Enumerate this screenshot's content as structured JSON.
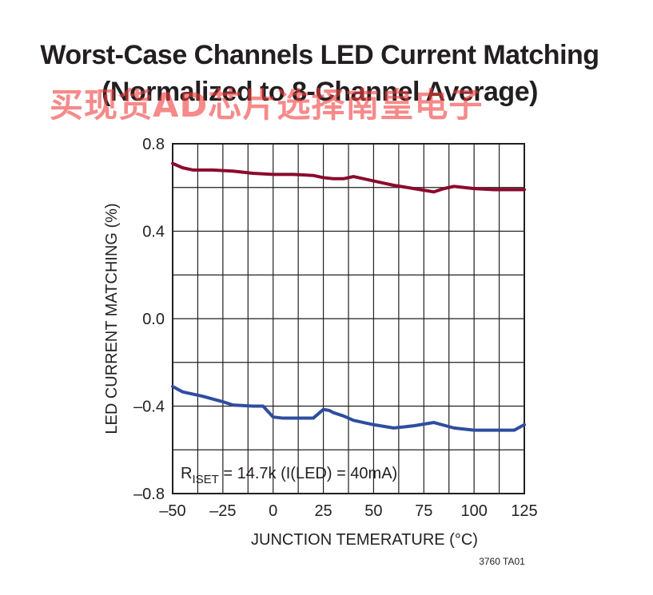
{
  "chart_data": {
    "type": "line",
    "title": "Worst-Case Channels LED Current Matching",
    "subtitle": "(Normalized to 8-Channel Average)",
    "xlabel": "JUNCTION TEMERATURE (°C)",
    "ylabel": "LED CURRENT MATCHING (%)",
    "xlim": [
      -50,
      125
    ],
    "ylim": [
      -0.8,
      0.8
    ],
    "xticks": [
      -50,
      -25,
      0,
      25,
      50,
      75,
      100,
      125
    ],
    "xtick_labels": [
      "–50",
      "–25",
      "0",
      "25",
      "50",
      "75",
      "100",
      "125"
    ],
    "yticks": [
      0.8,
      0.4,
      0.0,
      -0.4,
      -0.8
    ],
    "ytick_labels": [
      "0.8",
      "0.4",
      "0.0",
      "–0.4",
      "–0.8"
    ],
    "grid": true,
    "series": [
      {
        "color": "#8b0a2e",
        "x": [
          -50,
          -45,
          -40,
          -30,
          -20,
          -10,
          0,
          10,
          20,
          25,
          30,
          35,
          40,
          45,
          50,
          55,
          60,
          70,
          80,
          85,
          90,
          100,
          110,
          120,
          125
        ],
        "y": [
          0.71,
          0.69,
          0.68,
          0.68,
          0.675,
          0.665,
          0.66,
          0.66,
          0.655,
          0.645,
          0.64,
          0.64,
          0.65,
          0.64,
          0.63,
          0.62,
          0.61,
          0.595,
          0.58,
          0.595,
          0.605,
          0.595,
          0.59,
          0.59,
          0.59
        ]
      },
      {
        "color": "#2e4da0",
        "x": [
          -50,
          -45,
          -35,
          -25,
          -20,
          -10,
          -5,
          -3,
          0,
          5,
          10,
          20,
          25,
          28,
          30,
          35,
          40,
          50,
          60,
          70,
          80,
          90,
          100,
          110,
          120,
          125
        ],
        "y": [
          -0.31,
          -0.335,
          -0.355,
          -0.38,
          -0.395,
          -0.4,
          -0.4,
          -0.42,
          -0.45,
          -0.455,
          -0.455,
          -0.455,
          -0.415,
          -0.42,
          -0.43,
          -0.445,
          -0.465,
          -0.485,
          -0.5,
          -0.49,
          -0.475,
          -0.5,
          -0.51,
          -0.51,
          -0.51,
          -0.485
        ]
      }
    ],
    "annotation_prefix": "R",
    "annotation_subscript": "ISET",
    "annotation_text": " = 14.7k (I(LED) = 40mA)",
    "figure_code": "3760 TA01"
  },
  "watermark_text": "买现货AD芯片选择南皇电子"
}
